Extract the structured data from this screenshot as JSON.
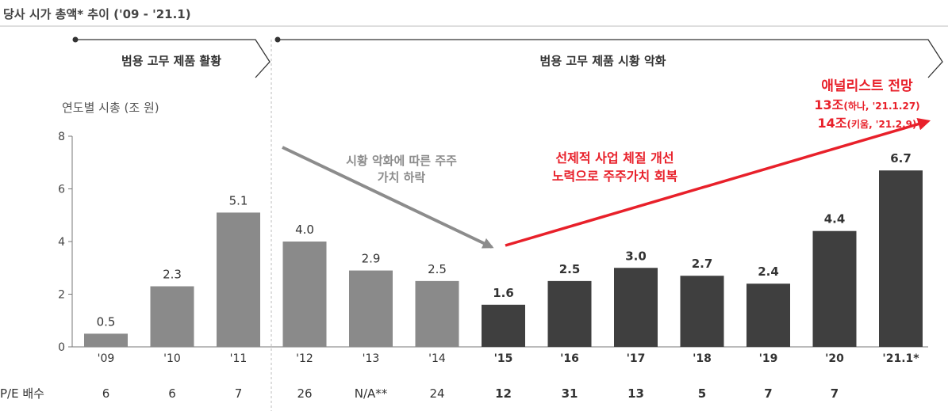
{
  "header": {
    "title": "당사 시가 총액* 추이 ('09 - '21.1)"
  },
  "phases": [
    {
      "label": "범용 고무 제품 활황"
    },
    {
      "label": "범용 고무 제품 시황 악화"
    }
  ],
  "colors": {
    "light_bar": "#8a8a8a",
    "dark_bar": "#3f3f3f",
    "accent_red": "#e8202a",
    "trend_gray": "#8c8c8c"
  },
  "annotations": {
    "decline_line1": "시황 악화에 따른 주주",
    "decline_line2": "가치 하락",
    "recovery_line1": "선제적 사업 체질 개선",
    "recovery_line2": "노력으로 주주가치 회복",
    "analyst_title": "애널리스트 전망",
    "analyst_line1_main": "13조",
    "analyst_line1_note": "(하나, '21.1.27)",
    "analyst_line2_main": "14조",
    "analyst_line2_note": "(키움, '21.2.9)"
  },
  "chart_data": {
    "type": "bar",
    "ylabel": "연도별 시총 (조 원)",
    "ylim": [
      0,
      8
    ],
    "yticks": [
      "0",
      "2",
      "4",
      "6",
      "8"
    ],
    "categories": [
      "'09",
      "'10",
      "'11",
      "'12",
      "'13",
      "'14",
      "'15",
      "'16",
      "'17",
      "'18",
      "'19",
      "'20",
      "'21.1*"
    ],
    "values": [
      0.5,
      2.3,
      5.1,
      4.0,
      2.9,
      2.5,
      1.6,
      2.5,
      3.0,
      2.7,
      2.4,
      4.4,
      6.7
    ],
    "value_labels": [
      "0.5",
      "2.3",
      "5.1",
      "4.0",
      "2.9",
      "2.5",
      "1.6",
      "2.5",
      "3.0",
      "2.7",
      "2.4",
      "4.4",
      "6.7"
    ],
    "pe_label": "P/E 배수",
    "pe_values": [
      "6",
      "6",
      "7",
      "26",
      "N/A**",
      "24",
      "12",
      "31",
      "13",
      "5",
      "7",
      "7",
      ""
    ]
  }
}
